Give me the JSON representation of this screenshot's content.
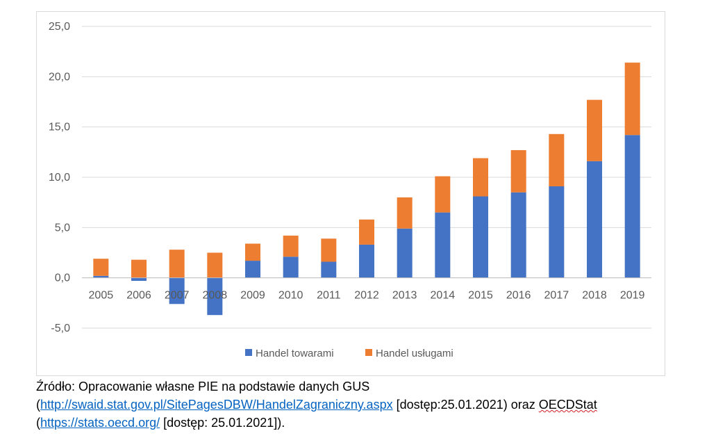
{
  "chart_data": {
    "type": "bar",
    "stacked": true,
    "categories": [
      "2005",
      "2006",
      "2007",
      "2008",
      "2009",
      "2010",
      "2011",
      "2012",
      "2013",
      "2014",
      "2015",
      "2016",
      "2017",
      "2018",
      "2019"
    ],
    "series": [
      {
        "name": "Handel towarami",
        "color": "#4472c4",
        "values": [
          0.2,
          -0.3,
          -2.6,
          -3.7,
          1.7,
          2.1,
          1.6,
          3.3,
          4.9,
          6.5,
          8.1,
          8.5,
          9.1,
          11.6,
          14.2
        ]
      },
      {
        "name": "Handel usługami",
        "color": "#ed7d31",
        "values": [
          1.7,
          1.8,
          2.8,
          2.5,
          1.7,
          2.1,
          2.3,
          2.5,
          3.1,
          3.6,
          3.8,
          4.2,
          5.2,
          6.1,
          7.2
        ]
      }
    ],
    "ylim": [
      -5,
      25
    ],
    "yticks": [
      "-5,0",
      "0,0",
      "5,0",
      "10,0",
      "15,0",
      "20,0",
      "25,0"
    ],
    "grid": true,
    "legend_position": "bottom"
  },
  "source": {
    "line1": "Źródło: Opracowanie własne PIE na podstawie danych GUS",
    "link1": "http://swaid.stat.gov.pl/SitePagesDBW/HandelZagraniczny.aspx",
    "text_after_link1": " [dostęp:25.01.2021) oraz ",
    "oecd_word": "OECDStat",
    "link2": "https://stats.oecd.org/",
    "text_after_link2": " [dostęp: 25.01.2021])."
  }
}
